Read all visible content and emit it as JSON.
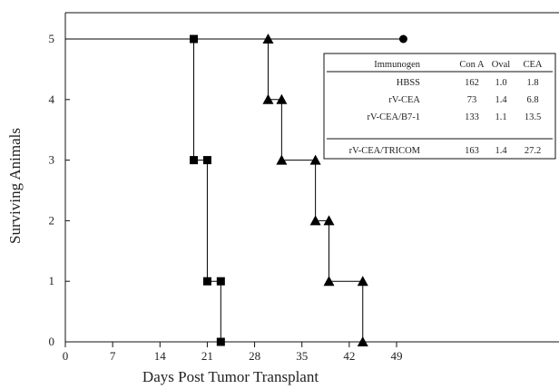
{
  "chart_data": {
    "type": "line",
    "title": "",
    "xlabel": "Days Post Tumor Transplant",
    "ylabel": "Surviving Animals",
    "xlim": [
      0,
      49
    ],
    "ylim": [
      0,
      5
    ],
    "x_ticks": [
      "0",
      "7",
      "14",
      "21",
      "28",
      "35",
      "42",
      "49"
    ],
    "y_ticks": [
      "0",
      "1",
      "2",
      "3",
      "4",
      "5"
    ],
    "grid": false,
    "series": [
      {
        "marker": "circle",
        "color": "#000000",
        "points": [
          [
            0,
            5
          ],
          [
            50,
            5
          ]
        ]
      },
      {
        "marker": "square",
        "color": "#000000",
        "points": [
          [
            19,
            5
          ],
          [
            19,
            3
          ],
          [
            21,
            3
          ],
          [
            21,
            1
          ],
          [
            23,
            1
          ],
          [
            23,
            0
          ]
        ]
      },
      {
        "marker": "triangle",
        "color": "#000000",
        "points": [
          [
            30,
            5
          ],
          [
            30,
            4
          ],
          [
            32,
            4
          ],
          [
            32,
            3
          ],
          [
            37,
            3
          ],
          [
            37,
            2
          ],
          [
            39,
            2
          ],
          [
            39,
            1
          ],
          [
            44,
            1
          ],
          [
            44,
            0
          ]
        ]
      }
    ],
    "inset_table": {
      "headers": [
        "Immunogen",
        "Con A",
        "Oval",
        "CEA"
      ],
      "rows": [
        [
          "HBSS",
          "162",
          "1.0",
          "1.8"
        ],
        [
          "rV-CEA",
          "73",
          "1.4",
          "6.8"
        ],
        [
          "rV-CEA/B7-1",
          "133",
          "1.1",
          "13.5"
        ],
        [
          "rV-CEA/TRICOM",
          "163",
          "1.4",
          "27.2"
        ]
      ]
    }
  }
}
